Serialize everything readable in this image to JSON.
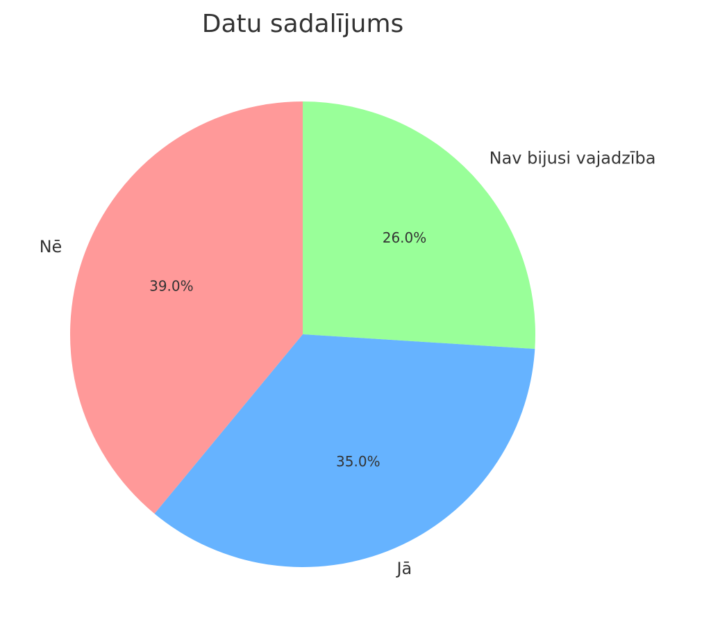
{
  "chart_data": {
    "type": "pie",
    "title": "Datu sadalījums",
    "categories": [
      "Nav bijusi vajadzība",
      "Jā",
      "Nē"
    ],
    "values": [
      26.0,
      35.0,
      39.0
    ],
    "value_labels": [
      "26.0%",
      "35.0%",
      "39.0%"
    ],
    "colors": [
      "#99ff99",
      "#66b3ff",
      "#ff9999"
    ]
  }
}
